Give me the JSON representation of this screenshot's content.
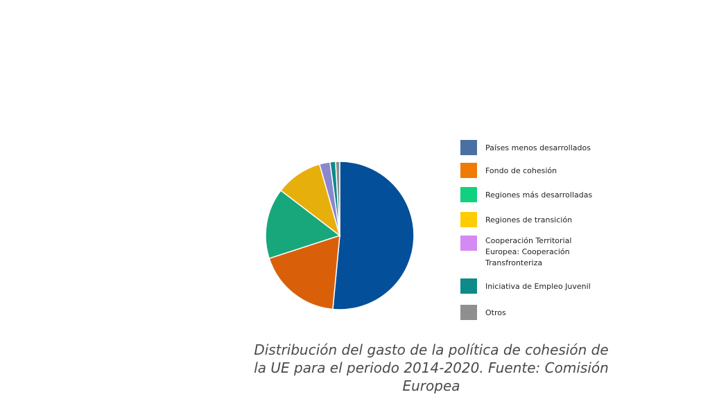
{
  "chart_data": {
    "type": "pie",
    "title": "",
    "caption": "Distribución del gasto de la política de cohesión de la UE para el periodo 2014-2020. Fuente: Comisión Europea",
    "legend_position": "right",
    "slices": [
      {
        "label": "Países menos desarrollados",
        "value": 51.5,
        "color": "#034f9a"
      },
      {
        "label": "Fondo de cohesión",
        "value": 18.5,
        "color": "#d96009"
      },
      {
        "label": "Regiones más desarrolladas",
        "value": 15.4,
        "color": "#17a77a"
      },
      {
        "label": "Regiones de transición",
        "value": 10.2,
        "color": "#e6af0c"
      },
      {
        "label": "Cooperación Territorial Europea: Cooperación Transfronteriza",
        "value": 2.3,
        "color": "#8a86d0"
      },
      {
        "label": "Iniciativa de Empleo Juvenil",
        "value": 1.2,
        "color": "#0e8a8a"
      },
      {
        "label": "Otros",
        "value": 0.9,
        "color": "#8f8f8f"
      }
    ]
  }
}
